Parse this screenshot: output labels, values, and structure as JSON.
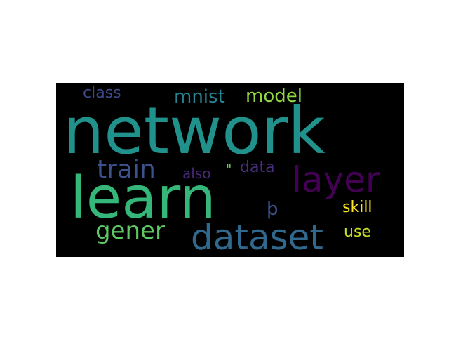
{
  "wordcloud": {
    "background_color": "#000000",
    "words": [
      {
        "text": "network",
        "color": "#21918c",
        "rotated": false
      },
      {
        "text": "learn",
        "color": "#35b779",
        "rotated": false
      },
      {
        "text": "layer",
        "color": "#440154",
        "rotated": false
      },
      {
        "text": "dataset",
        "color": "#31688e",
        "rotated": false
      },
      {
        "text": "train",
        "color": "#3b528b",
        "rotated": false
      },
      {
        "text": "gener",
        "color": "#5ec962",
        "rotated": false
      },
      {
        "text": "mnist",
        "color": "#26828e",
        "rotated": false
      },
      {
        "text": "model",
        "color": "#90d743",
        "rotated": false
      },
      {
        "text": "class",
        "color": "#3e4989",
        "rotated": false
      },
      {
        "text": "also",
        "color": "#482878",
        "rotated": false
      },
      {
        "text": "\"",
        "color": "#6ece58",
        "rotated": false
      },
      {
        "text": "data",
        "color": "#472d7b",
        "rotated": false
      },
      {
        "text": "þ",
        "color": "#3b528b",
        "rotated": false
      },
      {
        "text": "skill",
        "color": "#fde725",
        "rotated": false
      },
      {
        "text": "use",
        "color": "#c8e020",
        "rotated": false
      }
    ]
  }
}
